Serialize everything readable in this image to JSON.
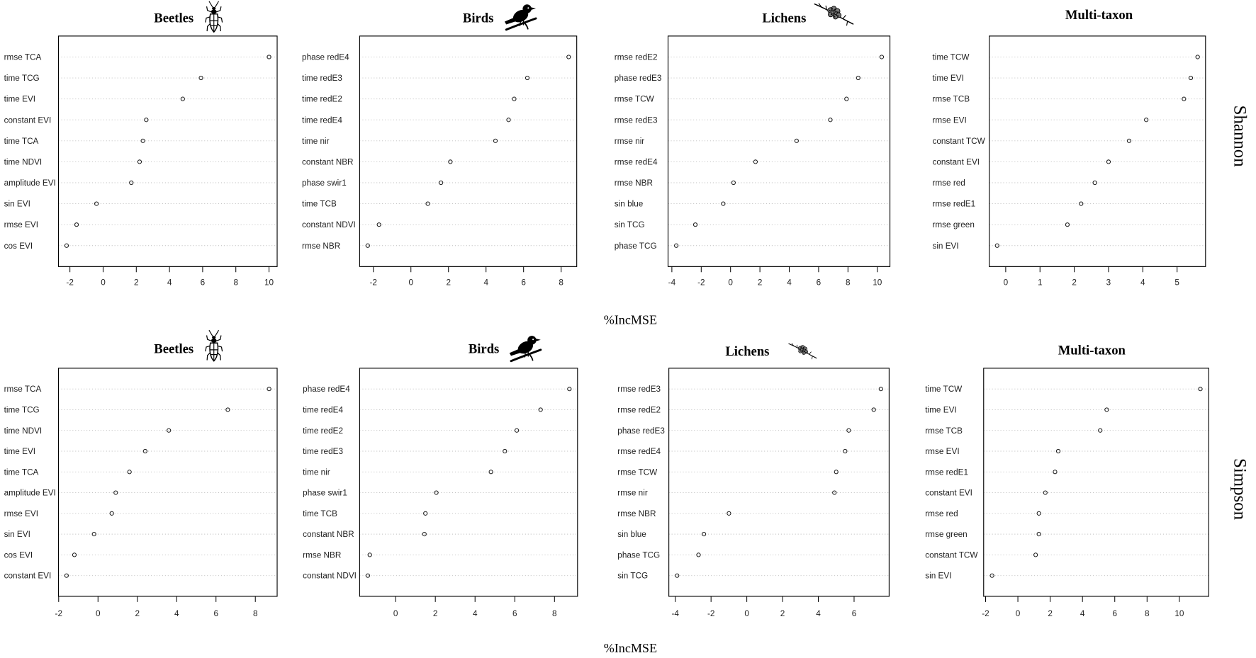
{
  "figure": {
    "rows": [
      {
        "metric": "Shannon",
        "xlabel": "%IncMSE"
      },
      {
        "metric": "Simpson",
        "xlabel": "%IncMSE"
      }
    ]
  },
  "colors": {
    "ink": "#000000",
    "grid": "#bdbdbd",
    "point": "#1a1a1a",
    "lichen": "#7a7a7a"
  },
  "chart_data": [
    {
      "type": "scatter",
      "title": "Beetles",
      "icon": "beetle-icon",
      "categories": [
        "rmse TCA",
        "time TCG",
        "time EVI",
        "constant EVI",
        "time TCA",
        "time NDVI",
        "amplitude EVI",
        "sin EVI",
        "rmse EVI",
        "cos EVI"
      ],
      "values": [
        10.0,
        5.9,
        4.8,
        2.6,
        2.4,
        2.2,
        1.7,
        -0.4,
        -1.6,
        -2.2
      ],
      "xticks": [
        -2,
        0,
        2,
        4,
        6,
        8,
        10
      ],
      "xlim": [
        -2.69,
        10.49
      ],
      "grid": true
    },
    {
      "type": "scatter",
      "title": "Birds",
      "icon": "bird-icon",
      "categories": [
        "phase redE4",
        "time redE3",
        "time redE2",
        "time redE4",
        "time nir",
        "constant NBR",
        "phase swir1",
        "time TCB",
        "constant NDVI",
        "rmse NBR"
      ],
      "values": [
        8.4,
        6.2,
        5.5,
        5.2,
        4.5,
        2.1,
        1.6,
        0.9,
        -1.7,
        -2.3
      ],
      "xticks": [
        -2,
        0,
        2,
        4,
        6,
        8
      ],
      "xlim": [
        -2.73,
        8.83
      ],
      "grid": true
    },
    {
      "type": "scatter",
      "title": "Lichens",
      "icon": "lichen-icon",
      "categories": [
        "rmse redE2",
        "phase redE3",
        "rmse TCW",
        "rmse redE3",
        "rmse nir",
        "rmse redE4",
        "rmse NBR",
        "sin blue",
        "sin TCG",
        "phase TCG"
      ],
      "values": [
        10.3,
        8.7,
        7.9,
        6.8,
        4.5,
        1.7,
        0.2,
        -0.5,
        -2.4,
        -3.7
      ],
      "xticks": [
        -4,
        -2,
        0,
        2,
        4,
        6,
        8,
        10
      ],
      "xlim": [
        -4.26,
        10.86
      ],
      "grid": true
    },
    {
      "type": "scatter",
      "title": "Multi-taxon",
      "categories": [
        "time TCW",
        "time EVI",
        "rmse TCB",
        "rmse EVI",
        "constant TCW",
        "constant EVI",
        "rmse red",
        "rmse redE1",
        "rmse green",
        "sin EVI"
      ],
      "values": [
        5.6,
        5.4,
        5.2,
        4.1,
        3.6,
        3.0,
        2.6,
        2.2,
        1.8,
        -0.25
      ],
      "xticks": [
        0,
        1,
        2,
        3,
        4,
        5
      ],
      "xlim": [
        -0.48,
        5.83
      ],
      "grid": true
    },
    {
      "type": "scatter",
      "title": "Beetles",
      "icon": "beetle-icon",
      "categories": [
        "rmse TCA",
        "time TCG",
        "time NDVI",
        "time EVI",
        "time TCA",
        "amplitude EVI",
        "rmse EVI",
        "sin EVI",
        "cos EVI",
        "constant EVI"
      ],
      "values": [
        8.7,
        6.6,
        3.6,
        2.4,
        1.6,
        0.9,
        0.7,
        -0.2,
        -1.2,
        -1.6
      ],
      "xticks": [
        -2,
        0,
        2,
        4,
        6,
        8
      ],
      "xlim": [
        -2.01,
        9.11
      ],
      "grid": true
    },
    {
      "type": "scatter",
      "title": "Birds",
      "icon": "bird-icon",
      "categories": [
        "phase redE4",
        "time redE4",
        "time redE2",
        "time redE3",
        "time nir",
        "phase swir1",
        "time TCB",
        "constant NBR",
        "rmse NBR",
        "constant NDVI"
      ],
      "values": [
        8.75,
        7.3,
        6.1,
        5.5,
        4.8,
        2.05,
        1.5,
        1.45,
        -1.3,
        -1.4
      ],
      "xticks": [
        0,
        2,
        4,
        6,
        8
      ],
      "xlim": [
        -1.81,
        9.16
      ],
      "grid": true
    },
    {
      "type": "scatter",
      "title": "Lichens",
      "icon": "lichen-icon",
      "categories": [
        "rmse redE3",
        "rmse redE2",
        "phase redE3",
        "rmse redE4",
        "rmse TCW",
        "rmse nir",
        "rmse NBR",
        "sin blue",
        "phase TCG",
        "sin TCG"
      ],
      "values": [
        7.5,
        7.1,
        5.7,
        5.5,
        5.0,
        4.9,
        -1.0,
        -2.4,
        -2.7,
        -3.9
      ],
      "xticks": [
        -4,
        -2,
        0,
        2,
        4,
        6
      ],
      "xlim": [
        -4.36,
        7.96
      ],
      "grid": true
    },
    {
      "type": "scatter",
      "title": "Multi-taxon",
      "categories": [
        "time TCW",
        "time EVI",
        "rmse TCB",
        "rmse EVI",
        "rmse redE1",
        "constant EVI",
        "rmse red",
        "rmse green",
        "constant TCW",
        "sin EVI"
      ],
      "values": [
        11.3,
        5.5,
        5.1,
        2.5,
        2.3,
        1.7,
        1.3,
        1.3,
        1.1,
        -1.6
      ],
      "xticks": [
        -2,
        0,
        2,
        4,
        6,
        8,
        10
      ],
      "xlim": [
        -2.12,
        11.82
      ],
      "grid": true
    }
  ]
}
